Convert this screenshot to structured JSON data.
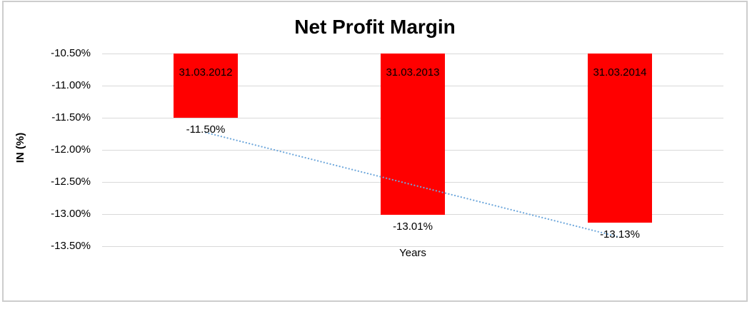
{
  "chart_data": {
    "type": "bar",
    "title": "Net Profit Margin",
    "categories": [
      "31.03.2012",
      "31.03.2013",
      "31.03.2014"
    ],
    "values": [
      -11.5,
      -13.01,
      -13.13
    ],
    "data_labels": [
      "-11.50%",
      "-13.01%",
      "-13.13%"
    ],
    "xlabel": "Years",
    "ylabel": "IN (%)",
    "ylim": [
      -13.5,
      -10.5
    ],
    "ytick_labels": [
      "-10.50%",
      "-11.00%",
      "-11.50%",
      "-12.00%",
      "-12.50%",
      "-13.00%",
      "-13.50%"
    ],
    "grid": true,
    "legend": "none",
    "bar_color": "#FF0000",
    "trendline": {
      "type": "linear",
      "style": "dotted",
      "color": "#6FA8DC",
      "endpoint_values": [
        -11.73,
        -13.36
      ]
    },
    "colors": {
      "text": "#000000",
      "gridline": "#D9D9D9",
      "frame_border": "#CDCDCD",
      "background": "#FFFFFF"
    }
  }
}
